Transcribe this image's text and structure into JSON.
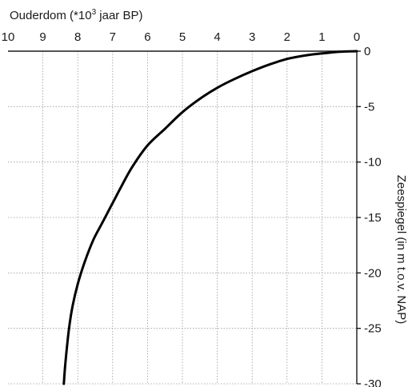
{
  "chart_data": {
    "type": "line",
    "xlabel_main": "Ouderdom (*10",
    "xlabel_sup": "3",
    "xlabel_rest": " jaar BP)",
    "ylabel": "Zeespiegel (in m t.o.v. NAP)",
    "xlim": [
      10,
      0
    ],
    "ylim": [
      -30,
      0
    ],
    "x_reversed": true,
    "x_axis_position": "top",
    "y_axis_position": "right",
    "grid": true,
    "x_ticks": [
      "10",
      "9",
      "8",
      "7",
      "6",
      "5",
      "4",
      "3",
      "2",
      "1",
      "0"
    ],
    "y_ticks": [
      "0",
      "-5",
      "-10",
      "-15",
      "-20",
      "-25",
      "-30"
    ],
    "series": [
      {
        "x": [
          8.4,
          8.35,
          8.25,
          8.15,
          8.0,
          7.8,
          7.55,
          7.3,
          7.05,
          6.8,
          6.45,
          6.0,
          5.5,
          5.0,
          4.5,
          4.0,
          3.5,
          3.0,
          2.5,
          2.0,
          1.5,
          1.0,
          0.5,
          0.0
        ],
        "y": [
          -30,
          -28,
          -25,
          -23,
          -21,
          -19,
          -17,
          -15.5,
          -14,
          -12.5,
          -10.5,
          -8.5,
          -7,
          -5.5,
          -4.3,
          -3.3,
          -2.5,
          -1.8,
          -1.2,
          -0.7,
          -0.4,
          -0.2,
          -0.05,
          0
        ]
      }
    ]
  }
}
